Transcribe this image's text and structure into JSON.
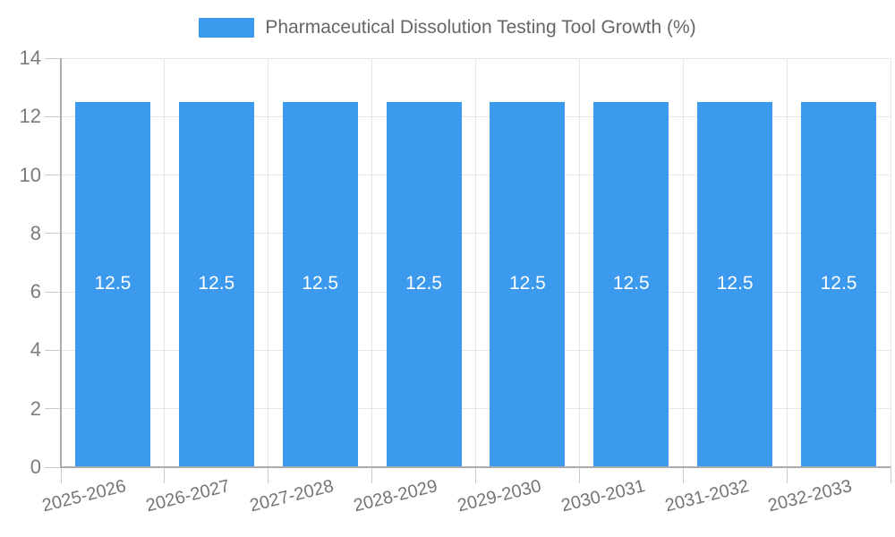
{
  "legend": {
    "label": "Pharmaceutical Dissolution Testing Tool Growth (%)",
    "swatch_color": "#3b99ee"
  },
  "chart_data": {
    "type": "bar",
    "title": "Pharmaceutical Dissolution Testing Tool Growth (%)",
    "categories": [
      "2025-2026",
      "2026-2027",
      "2027-2028",
      "2028-2029",
      "2029-2030",
      "2030-2031",
      "2031-2032",
      "2032-2033"
    ],
    "values": [
      12.5,
      12.5,
      12.5,
      12.5,
      12.5,
      12.5,
      12.5,
      12.5
    ],
    "bar_labels": [
      "12.5",
      "12.5",
      "12.5",
      "12.5",
      "12.5",
      "12.5",
      "12.5",
      "12.5"
    ],
    "xlabel": "",
    "ylabel": "",
    "ylim": [
      0,
      14
    ],
    "yticks": [
      0,
      2,
      4,
      6,
      8,
      10,
      12,
      14
    ],
    "grid": true,
    "legend_position": "top",
    "bar_color": "#3b99ee",
    "value_label_color": "#ffffff",
    "grid_color": "#e6e6e6",
    "axis_color": "#ababab",
    "tick_label_color": "#757575"
  }
}
